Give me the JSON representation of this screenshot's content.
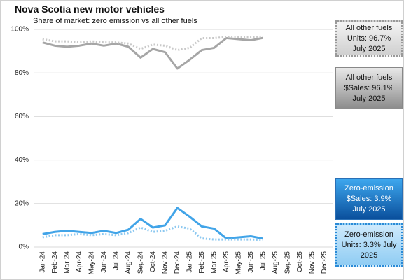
{
  "chart_data": {
    "type": "line",
    "title": "Nova Scotia new motor vehicles",
    "subtitle": "Share of market:  zero emission vs all other fuels",
    "categories": [
      "Jan-24",
      "Feb-24",
      "Mar-24",
      "Apr-24",
      "May-24",
      "Jun-24",
      "Jul-24",
      "Aug-24",
      "Sep-24",
      "Oct-24",
      "Nov-24",
      "Dec-24",
      "Jan-25",
      "Feb-25",
      "Mar-25",
      "Apr-25",
      "May-25",
      "Jun-25",
      "Jul-25",
      "Aug-25",
      "Sep-25",
      "Oct-25",
      "Nov-25",
      "Dec-25"
    ],
    "series": [
      {
        "color": "#a6a6a6",
        "dash": "solid",
        "values": [
          94,
          92.5,
          92,
          92.5,
          93.5,
          92.5,
          93.5,
          92,
          87,
          91,
          89.5,
          82,
          86,
          90.5,
          91.5,
          96,
          95.5,
          95,
          96.1,
          null,
          null,
          null,
          null,
          null
        ]
      },
      {
        "color": "#c8c8c8",
        "dash": "dotted",
        "values": [
          95.5,
          94.5,
          94.5,
          94,
          94.5,
          94,
          94,
          93.5,
          91,
          93,
          92.5,
          90.5,
          91.5,
          96,
          96,
          96.5,
          96.5,
          96.5,
          96.7,
          null,
          null,
          null,
          null,
          null
        ]
      },
      {
        "color": "#41a4e8",
        "dash": "solid",
        "values": [
          6,
          7,
          7.5,
          7,
          6.5,
          7.5,
          6.5,
          8,
          13,
          9,
          10,
          18,
          14,
          9.5,
          8.5,
          4,
          4.5,
          5,
          3.9,
          null,
          null,
          null,
          null,
          null
        ]
      },
      {
        "color": "#8cc8f0",
        "dash": "dotted",
        "values": [
          4.5,
          5.5,
          5.5,
          6,
          5.5,
          6,
          5.5,
          6.5,
          9,
          7,
          7.5,
          9.5,
          8.5,
          4,
          3.5,
          3.5,
          3.5,
          3.5,
          3.3,
          null,
          null,
          null,
          null,
          null
        ]
      }
    ],
    "ylim": [
      0,
      100
    ],
    "yticks": [
      {
        "value": 0,
        "label": "0%"
      },
      {
        "value": 20,
        "label": "20%"
      },
      {
        "value": 40,
        "label": "40%"
      },
      {
        "value": 60,
        "label": "60%"
      },
      {
        "value": 80,
        "label": "80%"
      },
      {
        "value": 100,
        "label": "100%"
      }
    ],
    "grid": true,
    "annotations": [
      {
        "text": "All other fuels Units: 96.7% July 2025"
      },
      {
        "text": "All other fuels $Sales: 96.1% July 2025"
      },
      {
        "text": "Zero-emission $Sales: 3.9% July 2025"
      },
      {
        "text": "Zero-emission Units: 3.3% July 2025"
      }
    ]
  }
}
